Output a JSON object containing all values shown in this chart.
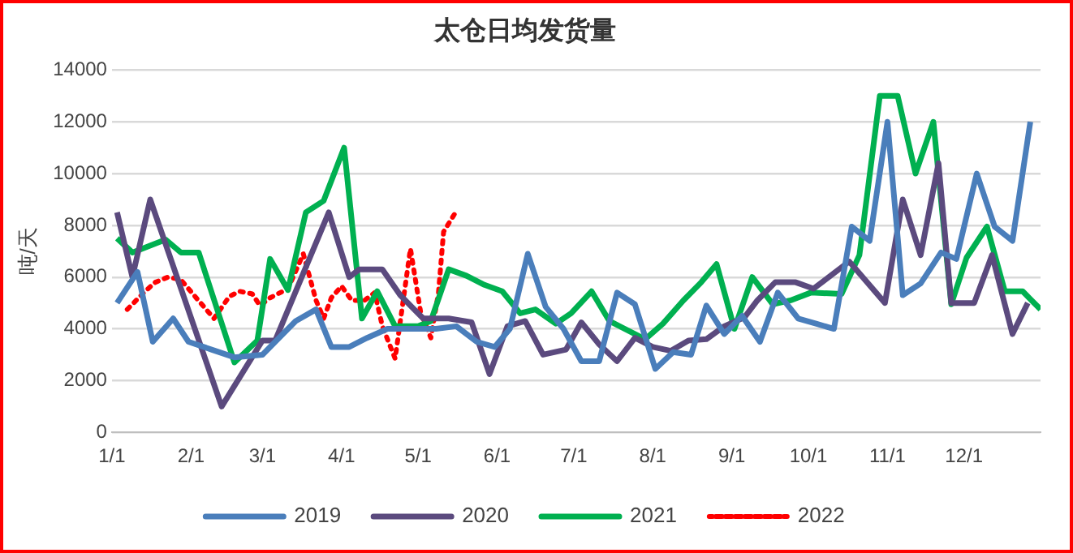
{
  "chart_data": {
    "type": "line",
    "title": "太仓日均发货量",
    "ylabel": "吨/天",
    "xlim": [
      "--01-01",
      "--12-31"
    ],
    "xticks": [
      {
        "value": "--01-01",
        "label": "1/1"
      },
      {
        "value": "--02-01",
        "label": "2/1"
      },
      {
        "value": "--03-01",
        "label": "3/1"
      },
      {
        "value": "--04-01",
        "label": "4/1"
      },
      {
        "value": "--05-01",
        "label": "5/1"
      },
      {
        "value": "--06-01",
        "label": "6/1"
      },
      {
        "value": "--07-01",
        "label": "7/1"
      },
      {
        "value": "--08-01",
        "label": "8/1"
      },
      {
        "value": "--09-01",
        "label": "9/1"
      },
      {
        "value": "--10-01",
        "label": "10/1"
      },
      {
        "value": "--11-01",
        "label": "11/1"
      },
      {
        "value": "--12-01",
        "label": "12/1"
      }
    ],
    "ylim": [
      0,
      14000
    ],
    "yticks": [
      0,
      2000,
      4000,
      6000,
      8000,
      10000,
      12000,
      14000
    ],
    "grid": "y",
    "legend": "bottom",
    "marker": "none",
    "series": [
      {
        "name": "2019",
        "color": "#4a7ebb",
        "line_style": "solid",
        "x": [
          "--01-03",
          "--01-11",
          "--01-17",
          "--01-25",
          "--01-31",
          "--02-09",
          "--02-18",
          "--03-01",
          "--03-06",
          "--03-14",
          "--03-22",
          "--03-28",
          "--04-04",
          "--04-11",
          "--04-19",
          "--04-27",
          "--05-08",
          "--05-16",
          "--05-24",
          "--05-31",
          "--06-06",
          "--06-13",
          "--06-20",
          "--06-27",
          "--07-04",
          "--07-11",
          "--07-18",
          "--07-25",
          "--08-02",
          "--08-09",
          "--08-16",
          "--08-22",
          "--08-29",
          "--09-05",
          "--09-12",
          "--09-19",
          "--09-27",
          "--10-04",
          "--10-11",
          "--10-18",
          "--10-25",
          "--11-01",
          "--11-07",
          "--11-14",
          "--11-22",
          "--11-28",
          "--12-06",
          "--12-13",
          "--12-20",
          "--12-27"
        ],
        "values": [
          5000,
          6200,
          3500,
          4400,
          3500,
          3200,
          2900,
          3000,
          3500,
          4300,
          4750,
          3300,
          3300,
          3650,
          4000,
          4000,
          4000,
          4100,
          3500,
          3300,
          4000,
          6900,
          4850,
          4000,
          2750,
          2750,
          5400,
          4950,
          2450,
          3100,
          3000,
          4900,
          3800,
          4500,
          3500,
          5400,
          4400,
          4200,
          4000,
          7950,
          7400,
          12000,
          5300,
          5750,
          6950,
          6700,
          10000,
          7950,
          7400,
          12000
        ]
      },
      {
        "name": "2020",
        "color": "#5b4a7e",
        "line_style": "solid",
        "x": [
          "--01-03",
          "--01-09",
          "--01-16",
          "--02-13",
          "--03-01",
          "--03-06",
          "--03-27",
          "--04-04",
          "--04-08",
          "--04-17",
          "--04-24",
          "--05-03",
          "--05-13",
          "--05-22",
          "--05-29",
          "--06-05",
          "--06-12",
          "--06-19",
          "--06-28",
          "--07-04",
          "--07-11",
          "--07-18",
          "--07-25",
          "--08-01",
          "--08-08",
          "--08-15",
          "--08-22",
          "--08-29",
          "--09-06",
          "--09-11",
          "--09-18",
          "--09-26",
          "--10-03",
          "--10-17",
          "--10-31",
          "--11-07",
          "--11-14",
          "--11-21",
          "--11-26",
          "--12-05",
          "--12-12",
          "--12-20",
          "--12-26"
        ],
        "values": [
          8500,
          6000,
          9000,
          1000,
          3550,
          3550,
          8500,
          6000,
          6300,
          6300,
          5300,
          4400,
          4400,
          4250,
          2250,
          4100,
          4300,
          3000,
          3200,
          4250,
          3400,
          2750,
          3650,
          3300,
          3150,
          3550,
          3600,
          4100,
          4450,
          5100,
          5800,
          5800,
          5550,
          6600,
          5000,
          9000,
          6850,
          10400,
          5000,
          5000,
          6850,
          3800,
          5000
        ]
      },
      {
        "name": "2021",
        "color": "#00b050",
        "line_style": "solid",
        "x": [
          "--01-03",
          "--01-09",
          "--01-22",
          "--01-28",
          "--02-04",
          "--02-18",
          "--02-27",
          "--03-04",
          "--03-11",
          "--03-18",
          "--03-25",
          "--04-02",
          "--04-09",
          "--04-15",
          "--04-22",
          "--05-01",
          "--05-06",
          "--05-13",
          "--05-20",
          "--05-27",
          "--06-03",
          "--06-10",
          "--06-16",
          "--06-24",
          "--06-30",
          "--07-08",
          "--07-15",
          "--07-29",
          "--08-05",
          "--08-13",
          "--08-20",
          "--08-26",
          "--09-02",
          "--09-09",
          "--09-17",
          "--09-24",
          "--10-02",
          "--10-14",
          "--10-21",
          "--10-29",
          "--11-05",
          "--11-12",
          "--11-19",
          "--11-26",
          "--12-02",
          "--12-10",
          "--12-17",
          "--12-24",
          "--12-31"
        ],
        "values": [
          7500,
          6950,
          7450,
          6950,
          6950,
          2700,
          3550,
          6700,
          5500,
          8500,
          8950,
          11000,
          4400,
          5450,
          4100,
          4100,
          4300,
          6300,
          6050,
          5700,
          5450,
          4600,
          4750,
          4200,
          4600,
          5450,
          4300,
          3600,
          4200,
          5100,
          5800,
          6500,
          4000,
          6000,
          4950,
          5100,
          5400,
          5350,
          6850,
          13000,
          13000,
          10000,
          12000,
          4950,
          6750,
          7950,
          5450,
          5450,
          4750
        ]
      },
      {
        "name": "2022",
        "color": "#ff0000",
        "line_style": "dotted",
        "x": [
          "--01-07",
          "--01-14",
          "--01-18",
          "--01-23",
          "--01-28",
          "--02-03",
          "--02-10",
          "--02-16",
          "--02-20",
          "--02-25",
          "--02-28",
          "--03-04",
          "--03-11",
          "--03-17",
          "--03-22",
          "--03-25",
          "--03-28",
          "--04-01",
          "--04-05",
          "--04-10",
          "--04-14",
          "--04-17",
          "--04-22",
          "--04-28",
          "--05-02",
          "--05-06",
          "--05-09",
          "--05-11",
          "--05-16"
        ],
        "values": [
          4750,
          5450,
          5800,
          6000,
          5900,
          5200,
          4400,
          5250,
          5450,
          5350,
          4900,
          5200,
          5550,
          6900,
          5100,
          4400,
          5200,
          5650,
          5100,
          5100,
          5400,
          4100,
          2850,
          7100,
          4650,
          3650,
          5400,
          7750,
          8550
        ]
      }
    ]
  }
}
